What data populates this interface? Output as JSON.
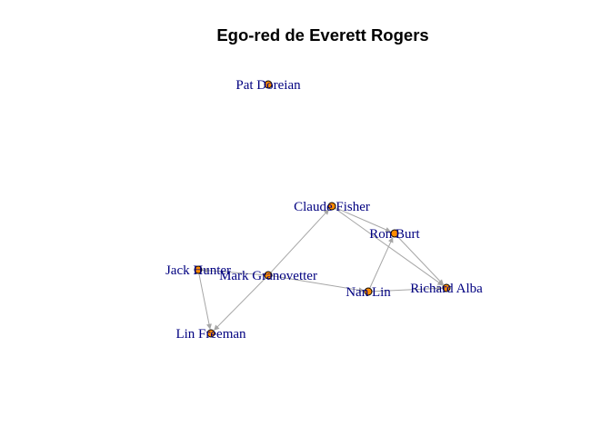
{
  "title": "Ego-red de Everett Rogers",
  "colors": {
    "edge": "#a6a6a6",
    "node_fill": "#ff8c00",
    "node_stroke": "#000000",
    "label": "#000080"
  },
  "nodes": [
    {
      "id": "pat-doreian",
      "label": "Pat Doreian"
    },
    {
      "id": "claude-fisher",
      "label": "Claude Fisher"
    },
    {
      "id": "ron-burt",
      "label": "Ron Burt"
    },
    {
      "id": "jack-hunter",
      "label": "Jack Hunter"
    },
    {
      "id": "mark-granovetter",
      "label": "Mark Granovetter"
    },
    {
      "id": "nan-lin",
      "label": "Nan Lin"
    },
    {
      "id": "richard-alba",
      "label": "Richard Alba"
    },
    {
      "id": "lin-freeman",
      "label": "Lin Freeman"
    }
  ],
  "edges": [
    {
      "from": "claude-fisher",
      "to": "ron-burt"
    },
    {
      "from": "claude-fisher",
      "to": "richard-alba"
    },
    {
      "from": "ron-burt",
      "to": "richard-alba"
    },
    {
      "from": "mark-granovetter",
      "to": "claude-fisher"
    },
    {
      "from": "mark-granovetter",
      "to": "nan-lin"
    },
    {
      "from": "mark-granovetter",
      "to": "jack-hunter"
    },
    {
      "from": "mark-granovetter",
      "to": "lin-freeman"
    },
    {
      "from": "jack-hunter",
      "to": "lin-freeman"
    },
    {
      "from": "nan-lin",
      "to": "ron-burt"
    },
    {
      "from": "nan-lin",
      "to": "richard-alba"
    }
  ]
}
